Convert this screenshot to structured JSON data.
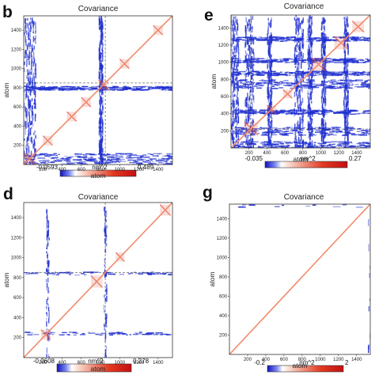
{
  "colors": {
    "negative": "#1f2fd0",
    "positive": "#e0442a",
    "diagonal": "#f08a6a",
    "frame": "#333333"
  },
  "chart_data": [
    {
      "type": "heatmap",
      "panel_letter": "b",
      "title": "Covariance",
      "xlabel": "atom",
      "ylabel": "atom",
      "x_ticks": [
        "200",
        "400",
        "600",
        "800",
        "1000",
        "1200",
        "1400"
      ],
      "y_ticks": [
        "200",
        "400",
        "600",
        "800",
        "1000",
        "1200",
        "1400"
      ],
      "xlim": [
        0,
        1550
      ],
      "ylim": [
        0,
        1550
      ],
      "colorbar": {
        "min": -0.0593,
        "max": 0.489,
        "min_label": "-0.0593",
        "max_label": "0.489",
        "unit": "nm^2"
      },
      "negative_bands": [
        [
          0,
          120
        ],
        [
          780,
          820
        ]
      ],
      "negative_density": 0.9,
      "positive_blocks": [
        [
          0,
          120
        ],
        [
          200,
          300
        ],
        [
          450,
          550
        ],
        [
          600,
          700
        ],
        [
          780,
          880
        ],
        [
          1000,
          1100
        ],
        [
          1350,
          1450
        ]
      ],
      "cross_lines": [
        850
      ]
    },
    {
      "type": "heatmap",
      "panel_letter": "e",
      "title": "Covariance",
      "xlabel": "atom",
      "ylabel": "atom",
      "x_ticks": [
        "200",
        "400",
        "600",
        "800",
        "1000",
        "1200",
        "1400"
      ],
      "y_ticks": [
        "200",
        "400",
        "600",
        "800",
        "1000",
        "1200",
        "1400"
      ],
      "xlim": [
        0,
        1550
      ],
      "ylim": [
        0,
        1550
      ],
      "colorbar": {
        "min": -0.035,
        "max": 0.27,
        "min_label": "-0.035",
        "max_label": "0.27",
        "unit": "nm^2"
      },
      "negative_bands": [
        [
          0,
          80
        ],
        [
          150,
          250
        ],
        [
          400,
          450
        ],
        [
          700,
          800
        ],
        [
          850,
          900
        ],
        [
          1000,
          1050
        ],
        [
          1250,
          1300
        ]
      ],
      "negative_density": 0.7,
      "positive_blocks": [
        [
          150,
          300
        ],
        [
          400,
          500
        ],
        [
          580,
          680
        ],
        [
          900,
          1050
        ],
        [
          1150,
          1300
        ],
        [
          1350,
          1480
        ]
      ],
      "cross_lines": [
        220
      ]
    },
    {
      "type": "heatmap",
      "panel_letter": "d",
      "title": "Covariance",
      "xlabel": "atom",
      "ylabel": "atom",
      "x_ticks": [
        "200",
        "400",
        "600",
        "800",
        "1000",
        "1200",
        "1400"
      ],
      "y_ticks": [
        "200",
        "400",
        "600",
        "800",
        "1000",
        "1200",
        "1400"
      ],
      "xlim": [
        0,
        1550
      ],
      "ylim": [
        0,
        1550
      ],
      "colorbar": {
        "min": -0.0608,
        "max": 0.278,
        "min_label": "-0.0608",
        "max_label": "0.278",
        "unit": "nm^2"
      },
      "negative_bands": [
        [
          230,
          260
        ],
        [
          830,
          860
        ]
      ],
      "negative_density": 0.25,
      "positive_blocks": [
        [
          180,
          280
        ],
        [
          700,
          820
        ],
        [
          960,
          1050
        ],
        [
          1420,
          1530
        ]
      ],
      "cross_lines": [
        850
      ]
    },
    {
      "type": "heatmap",
      "panel_letter": "g",
      "title": "Covariance",
      "xlabel": "atom",
      "ylabel": "atom",
      "x_ticks": [
        "200",
        "400",
        "600",
        "800",
        "1000",
        "1200",
        "1400"
      ],
      "y_ticks": [
        "200",
        "400",
        "600",
        "800",
        "1000",
        "1200",
        "1400"
      ],
      "xlim": [
        0,
        1550
      ],
      "ylim": [
        0,
        1550
      ],
      "colorbar": {
        "min": -0.2,
        "max": 2,
        "min_label": "-0.2",
        "max_label": "2",
        "unit": "nm^2"
      },
      "negative_bands": [
        [
          1520,
          1550
        ]
      ],
      "negative_density": 0.05,
      "positive_blocks": [],
      "cross_lines": []
    }
  ]
}
